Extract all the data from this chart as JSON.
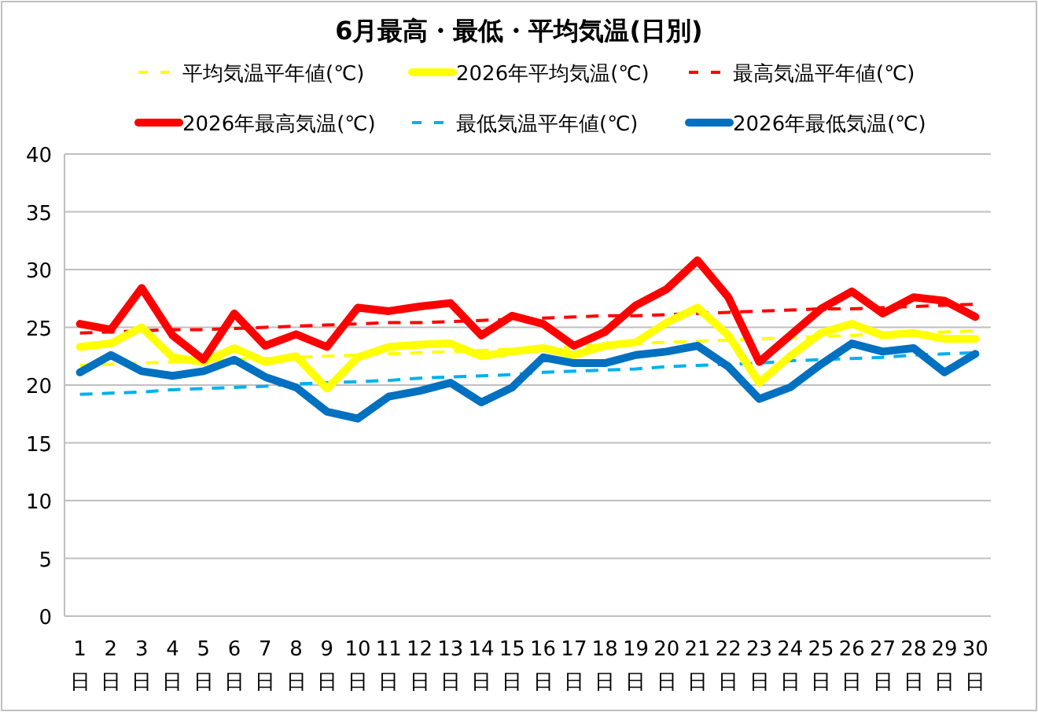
{
  "chart_data": {
    "type": "line",
    "title": "6月最高・最低・平均気温(日別)",
    "categories": [
      "1\n日",
      "2\n日",
      "3\n日",
      "4\n日",
      "5\n日",
      "6\n日",
      "7\n日",
      "8\n日",
      "9\n日",
      "10\n日",
      "11\n日",
      "12\n日",
      "13\n日",
      "14\n日",
      "15\n日",
      "16\n日",
      "17\n日",
      "18\n日",
      "19\n日",
      "20\n日",
      "21\n日",
      "22\n日",
      "23\n日",
      "24\n日",
      "25\n日",
      "26\n日",
      "27\n日",
      "28\n日",
      "29\n日",
      "30\n日"
    ],
    "series": [
      {
        "name": "平均気温平年値(℃)",
        "color": "#ffff00",
        "line_style": "dashed",
        "values": [
          21.7,
          21.8,
          21.9,
          22.0,
          22.1,
          22.2,
          22.3,
          22.4,
          22.5,
          22.6,
          22.7,
          22.8,
          22.9,
          23.0,
          23.1,
          23.2,
          23.3,
          23.5,
          23.6,
          23.7,
          23.8,
          23.9,
          24.0,
          24.1,
          24.2,
          24.3,
          24.4,
          24.5,
          24.6,
          24.7
        ]
      },
      {
        "name": "2026年平均気温(℃)",
        "color": "#ffff00",
        "line_style": "solid",
        "values": [
          23.3,
          23.6,
          25.0,
          22.4,
          22.0,
          23.2,
          22.0,
          22.5,
          19.7,
          22.4,
          23.3,
          23.5,
          23.6,
          22.5,
          22.9,
          23.2,
          22.6,
          23.4,
          23.7,
          25.4,
          26.7,
          24.3,
          20.2,
          22.5,
          24.5,
          25.3,
          24.3,
          24.5,
          24.0,
          24.0
        ]
      },
      {
        "name": "最高気温平年値(℃)",
        "color": "#ff0000",
        "line_style": "dashed",
        "values": [
          24.5,
          24.6,
          24.7,
          24.8,
          24.8,
          24.9,
          25.0,
          25.1,
          25.2,
          25.3,
          25.4,
          25.4,
          25.5,
          25.6,
          25.7,
          25.8,
          25.9,
          26.0,
          26.0,
          26.1,
          26.2,
          26.3,
          26.4,
          26.5,
          26.6,
          26.6,
          26.7,
          26.8,
          26.9,
          27.0
        ]
      },
      {
        "name": "2026年最高気温(℃)",
        "color": "#ff0000",
        "line_style": "solid",
        "values": [
          25.3,
          24.8,
          28.4,
          24.3,
          22.2,
          26.2,
          23.4,
          24.4,
          23.3,
          26.7,
          26.4,
          26.8,
          27.1,
          24.3,
          26.0,
          25.3,
          23.4,
          24.6,
          26.9,
          28.3,
          30.8,
          27.6,
          22.0,
          24.3,
          26.6,
          28.1,
          26.2,
          27.6,
          27.3,
          25.9
        ]
      },
      {
        "name": "最低気温平年値(℃)",
        "color": "#00b0f0",
        "line_style": "dashed",
        "values": [
          19.2,
          19.3,
          19.4,
          19.6,
          19.7,
          19.8,
          19.9,
          20.1,
          20.2,
          20.3,
          20.4,
          20.6,
          20.7,
          20.8,
          20.9,
          21.1,
          21.2,
          21.3,
          21.4,
          21.6,
          21.7,
          21.8,
          21.9,
          22.1,
          22.2,
          22.3,
          22.4,
          22.6,
          22.7,
          22.8
        ]
      },
      {
        "name": "2026年最低気温(℃)",
        "color": "#0070c0",
        "line_style": "solid",
        "values": [
          21.1,
          22.6,
          21.2,
          20.8,
          21.2,
          22.2,
          20.7,
          19.8,
          17.7,
          17.1,
          19.0,
          19.5,
          20.2,
          18.5,
          19.8,
          22.4,
          21.9,
          21.9,
          22.6,
          22.9,
          23.4,
          21.6,
          18.8,
          19.8,
          21.8,
          23.6,
          22.9,
          23.2,
          21.1,
          22.7
        ]
      }
    ],
    "ylim": [
      0,
      40
    ],
    "yticks": [
      0,
      5,
      10,
      15,
      20,
      25,
      30,
      35,
      40
    ],
    "grid": "y",
    "legend": "top",
    "marker": "none"
  }
}
